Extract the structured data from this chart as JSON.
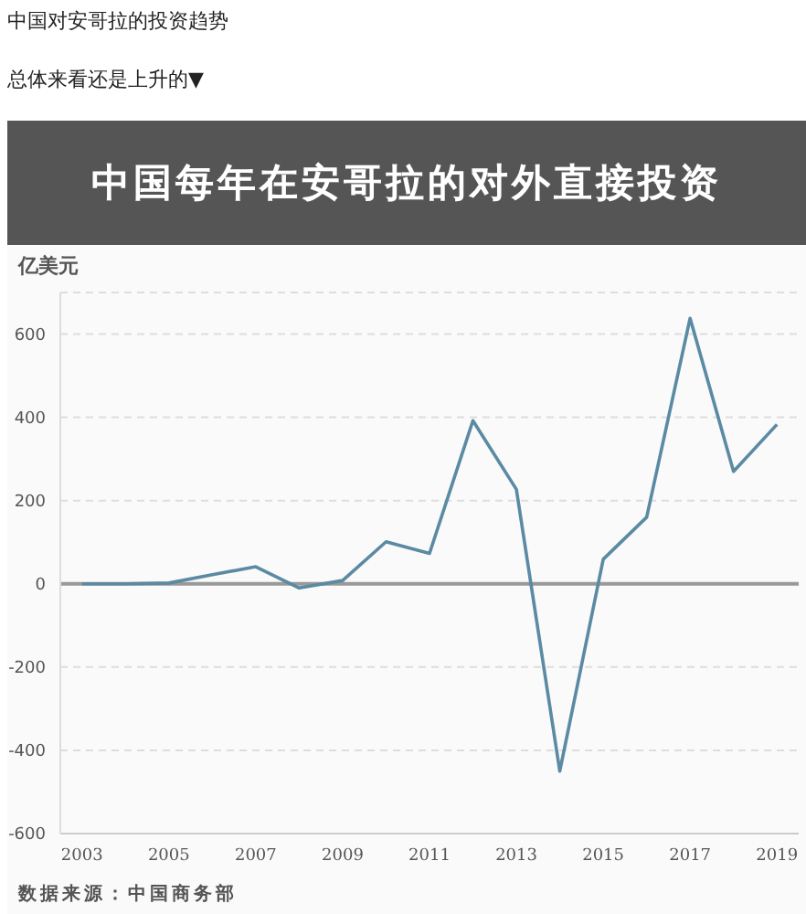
{
  "chart_data": {
    "type": "line",
    "title": "中国每年在安哥拉的对外直接投资",
    "ylabel": "亿美元",
    "annotations": [
      "中国对安哥拉的投资趋势",
      "总体来看还是上升的▼",
      "数据来源：中国商务部"
    ],
    "x": [
      2003,
      2004,
      2005,
      2006,
      2007,
      2008,
      2009,
      2010,
      2011,
      2012,
      2013,
      2014,
      2015,
      2016,
      2017,
      2018,
      2019
    ],
    "series": [
      {
        "color": "#5b8aa3",
        "values": [
          0,
          0,
          2,
          22,
          41,
          -10,
          8,
          101,
          73,
          392,
          227,
          -450,
          59,
          160,
          638,
          270,
          383
        ]
      }
    ],
    "xlim": [
      2002.5,
      2019.5
    ],
    "xticks": [
      2003,
      2005,
      2007,
      2009,
      2011,
      2013,
      2015,
      2017,
      2019
    ],
    "ylim": [
      -600,
      700
    ],
    "yticks": [
      -600,
      -400,
      -200,
      0,
      200,
      400,
      600
    ],
    "grid": "y",
    "marker": "none",
    "line_style": "solid",
    "ref_lines": [
      {
        "axis": "y",
        "value": 0,
        "color": "#999999"
      }
    ]
  }
}
